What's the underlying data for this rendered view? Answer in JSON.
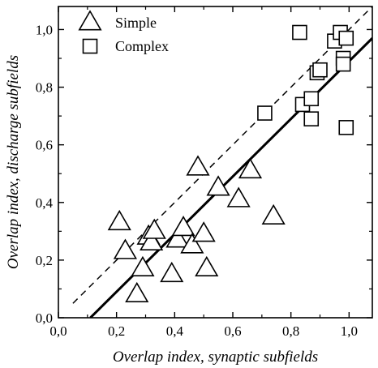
{
  "chart_data": {
    "type": "scatter",
    "title": "",
    "xlabel": "Overlap index, synaptic subfields",
    "ylabel": "Overlap index, discharge subfields",
    "xlim": [
      0.0,
      1.08
    ],
    "ylim": [
      0.0,
      1.08
    ],
    "x_ticks": [
      0.0,
      0.2,
      0.4,
      0.6,
      0.8,
      1.0
    ],
    "y_ticks": [
      0.0,
      0.2,
      0.4,
      0.6,
      0.8,
      1.0
    ],
    "x_tick_labels": [
      "0,0",
      "0,2",
      "0,4",
      "0,6",
      "0,8",
      "1,0"
    ],
    "y_tick_labels": [
      "0,0",
      "0,2",
      "0,4",
      "0,6",
      "0,8",
      "1,0"
    ],
    "grid": false,
    "legend_position": "top-left",
    "series": [
      {
        "name": "Simple",
        "marker": "triangle",
        "points": [
          [
            0.21,
            0.33
          ],
          [
            0.23,
            0.23
          ],
          [
            0.27,
            0.08
          ],
          [
            0.29,
            0.17
          ],
          [
            0.31,
            0.28
          ],
          [
            0.32,
            0.26
          ],
          [
            0.33,
            0.3
          ],
          [
            0.39,
            0.15
          ],
          [
            0.41,
            0.27
          ],
          [
            0.43,
            0.31
          ],
          [
            0.46,
            0.25
          ],
          [
            0.48,
            0.52
          ],
          [
            0.5,
            0.29
          ],
          [
            0.51,
            0.17
          ],
          [
            0.55,
            0.45
          ],
          [
            0.62,
            0.41
          ],
          [
            0.66,
            0.51
          ],
          [
            0.74,
            0.35
          ]
        ]
      },
      {
        "name": "Complex",
        "marker": "square",
        "points": [
          [
            0.71,
            0.71
          ],
          [
            0.83,
            0.99
          ],
          [
            0.84,
            0.74
          ],
          [
            0.87,
            0.76
          ],
          [
            0.87,
            0.69
          ],
          [
            0.89,
            0.85
          ],
          [
            0.9,
            0.86
          ],
          [
            0.95,
            0.96
          ],
          [
            0.97,
            0.99
          ],
          [
            0.98,
            0.9
          ],
          [
            0.98,
            0.88
          ],
          [
            0.99,
            0.97
          ],
          [
            0.99,
            0.66
          ]
        ]
      }
    ],
    "lines": [
      {
        "style": "dashed",
        "points": [
          [
            0.05,
            0.05
          ],
          [
            1.08,
            1.08
          ]
        ]
      },
      {
        "style": "solid",
        "points": [
          [
            0.11,
            0.0
          ],
          [
            1.08,
            0.97
          ]
        ]
      }
    ]
  }
}
